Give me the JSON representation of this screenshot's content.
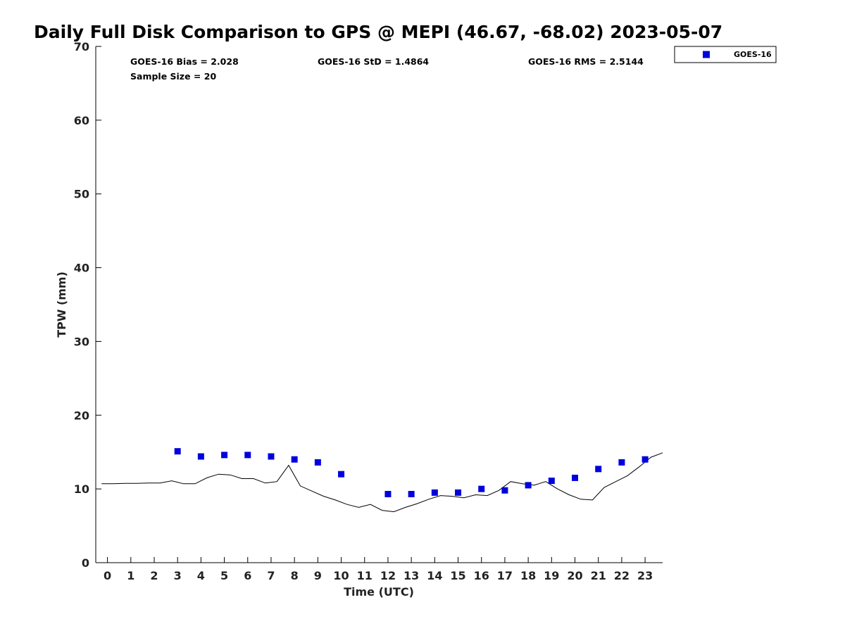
{
  "chart_data": {
    "type": "scatter",
    "title": "Daily Full Disk Comparison to GPS @ MEPI (46.67, -68.02) 2023-05-07",
    "xlabel": "Time (UTC)",
    "ylabel": "TPW (mm)",
    "xlim": [
      -0.5,
      23.75
    ],
    "ylim": [
      0,
      70
    ],
    "x_ticks": [
      "0",
      "1",
      "2",
      "3",
      "4",
      "5",
      "6",
      "7",
      "8",
      "9",
      "10",
      "11",
      "12",
      "13",
      "14",
      "15",
      "16",
      "17",
      "18",
      "19",
      "20",
      "21",
      "22",
      "23"
    ],
    "y_ticks": [
      "0",
      "10",
      "20",
      "30",
      "40",
      "50",
      "60",
      "70"
    ],
    "grid": false,
    "legend_position": "top-right, outside plot",
    "stats": {
      "bias": "GOES-16 Bias = 2.028",
      "std": "GOES-16 StD = 1.4864",
      "rms": "GOES-16 RMS = 2.5144",
      "sample": "Sample Size = 20"
    },
    "series": [
      {
        "name": "GOES-16",
        "kind": "scatter",
        "marker": "square",
        "color": "#0000dd",
        "x": [
          3,
          4,
          5,
          6,
          7,
          8,
          9,
          10,
          12,
          13,
          14,
          15,
          16,
          17,
          18,
          19,
          20,
          21,
          22,
          23
        ],
        "y": [
          15.1,
          14.4,
          14.6,
          14.6,
          14.4,
          14.0,
          13.6,
          12.0,
          9.3,
          9.3,
          9.5,
          9.5,
          10.0,
          9.8,
          10.5,
          11.1,
          11.5,
          12.7,
          13.6,
          14.0
        ]
      },
      {
        "kind": "line",
        "color": "#000000",
        "x": [
          -0.25,
          0.25,
          0.75,
          1.25,
          1.75,
          2.25,
          2.75,
          3.25,
          3.75,
          4.25,
          4.75,
          5.25,
          5.75,
          6.25,
          6.75,
          7.25,
          7.75,
          8.25,
          8.75,
          9.25,
          9.75,
          10.25,
          10.75,
          11.25,
          11.75,
          12.25,
          12.75,
          13.25,
          13.75,
          14.25,
          14.75,
          15.25,
          15.75,
          16.25,
          16.75,
          17.25,
          17.75,
          18.25,
          18.75,
          19.25,
          19.75,
          20.25,
          20.75,
          21.25,
          21.75,
          22.25,
          22.75,
          23.25,
          23.75
        ],
        "y": [
          10.7,
          10.7,
          10.75,
          10.75,
          10.8,
          10.8,
          11.1,
          10.7,
          10.7,
          11.5,
          12.0,
          11.9,
          11.4,
          11.4,
          10.8,
          11.0,
          13.2,
          10.4,
          9.7,
          9.0,
          8.5,
          7.9,
          7.5,
          7.9,
          7.1,
          6.9,
          7.5,
          8.0,
          8.6,
          9.1,
          9.0,
          8.8,
          9.2,
          9.1,
          9.8,
          11.0,
          10.7,
          10.5,
          11.0,
          10.0,
          9.2,
          8.6,
          8.5,
          10.2,
          11.0,
          11.8,
          13.0,
          14.3,
          14.9
        ]
      }
    ]
  }
}
